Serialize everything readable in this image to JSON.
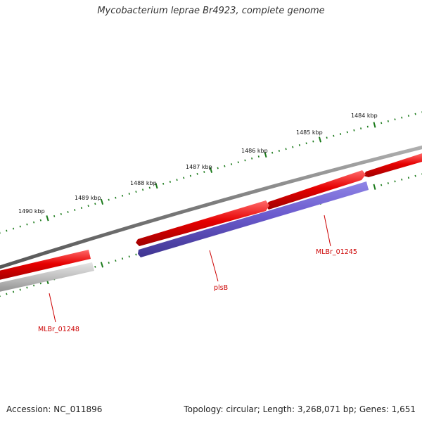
{
  "title": "Mycobacterium leprae Br4923, complete genome",
  "footer": {
    "accession": "Accession: NC_011896",
    "summary": "Topology: circular; Length: 3,268,071 bp; Genes: 1,651"
  },
  "ticks": [
    {
      "label": "1484 kbp"
    },
    {
      "label": "1485 kbp"
    },
    {
      "label": "1486 kbp"
    },
    {
      "label": "1487 kbp"
    },
    {
      "label": "1488 kbp"
    },
    {
      "label": "1489 kbp"
    },
    {
      "label": "1490 kbp"
    }
  ],
  "genes": [
    {
      "name": "MLBr_01245",
      "color": "#e60000"
    },
    {
      "name": "plsB",
      "color": "#6a5acd"
    },
    {
      "name": "MLBr_01248",
      "color": "#bdbdbd"
    }
  ],
  "colors": {
    "backbone": "#808080",
    "forward_cds": "#e60000",
    "reverse_cds": "#6a5acd",
    "pseudo_gene": "#bdbdbd",
    "tick_marks": "#1a7a1a",
    "label_text": "#cc0000"
  }
}
